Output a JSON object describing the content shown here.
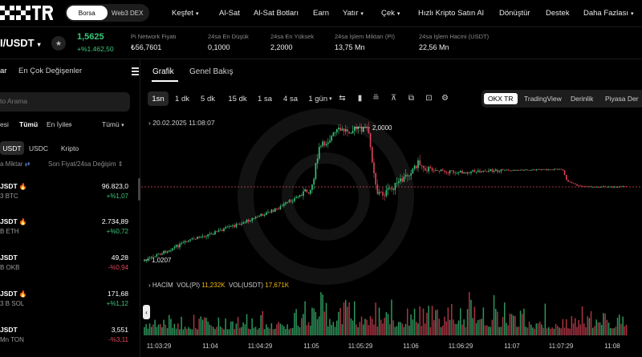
{
  "topbar": {
    "logo_text": "OKX TR",
    "switch": [
      {
        "label": "Borsa",
        "active": true
      },
      {
        "label": "Web3 DEX",
        "active": false
      }
    ],
    "nav": [
      {
        "label": "Keşfet",
        "caret": true
      },
      {
        "label": "Al-Sat",
        "caret": false
      },
      {
        "label": "Al-Sat Botları",
        "caret": false
      },
      {
        "label": "Earn",
        "caret": false
      },
      {
        "label": "Yatır",
        "caret": true
      },
      {
        "label": "Çek",
        "caret": true
      },
      {
        "label": "Hızlı Kripto Satın Al",
        "caret": false
      },
      {
        "label": "Dönüştür",
        "caret": false
      },
      {
        "label": "Destek",
        "caret": false
      },
      {
        "label": "Daha Fazlası",
        "caret": true
      }
    ]
  },
  "ticker": {
    "pair": "I/USDT",
    "price": "1,5625",
    "change": "+%1.462,50",
    "stats": [
      {
        "label": "Pi Network Fiyatı",
        "value": "₺56,7601"
      },
      {
        "label": "24sa En Düşük",
        "value": "0,1000"
      },
      {
        "label": "24sa En Yüksek",
        "value": "2,2000"
      },
      {
        "label": "24sa İşlem Miktarı (PI)",
        "value": "13,75 Mn"
      },
      {
        "label": "24sa İşlem Hacmi (USDT)",
        "value": "22,56 Mn"
      }
    ]
  },
  "left": {
    "tabs": [
      "ar",
      "En Çok Değişenler"
    ],
    "search_placeholder": "to Arama",
    "filters": [
      "esi",
      "Tümü",
      "En İyiler",
      "Tümü"
    ],
    "quote_chips": [
      {
        "label": "USDT",
        "active": true
      },
      {
        "label": "USDC",
        "active": false
      },
      {
        "label": "Kripto",
        "active": false
      }
    ],
    "sort_left": "a Miktar",
    "sort_right": "Son Fiyat/24sa Değişim",
    "assets": [
      {
        "name": "JSDT",
        "hot": true,
        "volume": "3 BTC",
        "price": "96.823,0",
        "change": "+%1,07",
        "dir": "up"
      },
      {
        "name": "JSDT",
        "hot": true,
        "volume": "B ETH",
        "price": "2.734,89",
        "change": "+%0,72",
        "dir": "up"
      },
      {
        "name": "JSDT",
        "hot": false,
        "volume": "B OKB",
        "price": "49,28",
        "change": "-%0,94",
        "dir": "dn"
      },
      {
        "name": "JSDT",
        "hot": true,
        "volume": "3 B SOL",
        "price": "171,68",
        "change": "+%1,12",
        "dir": "up"
      },
      {
        "name": "JSDT",
        "hot": false,
        "volume": "Mn TON",
        "price": "3,551",
        "change": "-%3,11",
        "dir": "dn"
      }
    ]
  },
  "chart": {
    "tabs": [
      {
        "label": "Grafik",
        "active": true
      },
      {
        "label": "Genel Bakış",
        "active": false
      }
    ],
    "timeframes": [
      {
        "label": "1sn",
        "active": true
      },
      {
        "label": "1 dk",
        "active": false
      },
      {
        "label": "5 dk",
        "active": false
      },
      {
        "label": "15 dk",
        "active": false
      },
      {
        "label": "1 sa",
        "active": false
      },
      {
        "label": "4 sa",
        "active": false
      },
      {
        "label": "1 gün",
        "active": false
      }
    ],
    "views": [
      {
        "label": "OKX TR",
        "active": true
      },
      {
        "label": "TradingView",
        "active": false
      },
      {
        "label": "Derinlik",
        "active": false
      },
      {
        "label": "Piyasa Der",
        "active": false
      }
    ],
    "date_label": "20.02.2025 11:08:07",
    "high_label": "2,0000",
    "low_label": "1,0207",
    "volume_legend": {
      "title": "HACİM",
      "vol_pi_label": "VOL(PI)",
      "vol_pi_value": "11,232K",
      "vol_usdt_label": "VOL(USDT)",
      "vol_usdt_value": "17,671K"
    },
    "x_labels": [
      "11:03:29",
      "11:04",
      "11:04:29",
      "11:05",
      "11:05:29",
      "11:06",
      "11:06:29",
      "11:07",
      "11:07:29",
      "11:08"
    ],
    "colors": {
      "up": "#3cc77a",
      "down": "#e0455a",
      "accent": "#f0b90b"
    }
  }
}
